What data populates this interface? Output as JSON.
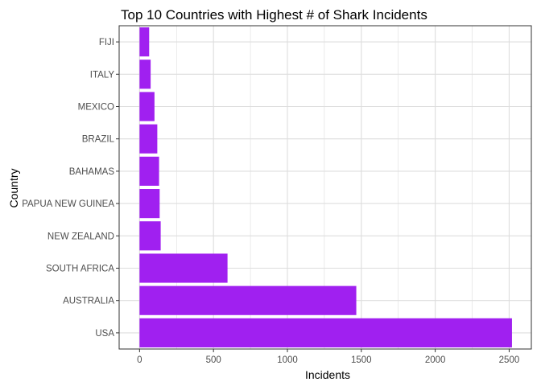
{
  "chart_data": {
    "type": "bar",
    "orientation": "horizontal",
    "title": "Top 10 Countries with Highest # of Shark Incidents",
    "xlabel": "Incidents",
    "ylabel": "Country",
    "categories": [
      "USA",
      "AUSTRALIA",
      "SOUTH AFRICA",
      "NEW ZEALAND",
      "PAPUA NEW GUINEA",
      "BAHAMAS",
      "BRAZIL",
      "MEXICO",
      "ITALY",
      "FIJI"
    ],
    "values": [
      2519,
      1466,
      595,
      143,
      136,
      132,
      120,
      101,
      75,
      65
    ],
    "xlim": [
      -138,
      2650
    ],
    "xticks": [
      0,
      500,
      1000,
      1500,
      2000,
      2500
    ],
    "grid": true,
    "bar_color": "#A020F0",
    "grid_color": "#DDDDDD",
    "panel_border_color": "#333333"
  }
}
